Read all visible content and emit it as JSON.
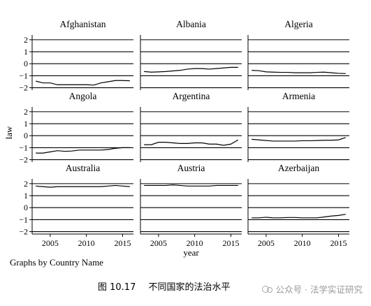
{
  "chart_data": {
    "type": "line",
    "layout": "small-multiples",
    "xlabel": "year",
    "ylabel": "law",
    "xlim": [
      2002.5,
      2016.5
    ],
    "ylim": [
      -2.2,
      2.4
    ],
    "xticks": [
      2005,
      2010,
      2015
    ],
    "yticks": [
      2,
      1,
      0,
      -1,
      -2
    ],
    "grid": "horizontal",
    "x": [
      2003,
      2004,
      2005,
      2006,
      2007,
      2008,
      2009,
      2010,
      2011,
      2012,
      2013,
      2014,
      2015,
      2016
    ],
    "panels": [
      {
        "name": "Afghanistan",
        "values": [
          -1.45,
          -1.6,
          -1.6,
          -1.75,
          -1.75,
          -1.75,
          -1.75,
          -1.75,
          -1.78,
          -1.6,
          -1.5,
          -1.4,
          -1.4,
          -1.42
        ]
      },
      {
        "name": "Albania",
        "values": [
          -0.65,
          -0.7,
          -0.68,
          -0.65,
          -0.6,
          -0.55,
          -0.45,
          -0.4,
          -0.4,
          -0.45,
          -0.4,
          -0.35,
          -0.3,
          -0.3
        ]
      },
      {
        "name": "Algeria",
        "values": [
          -0.55,
          -0.58,
          -0.68,
          -0.7,
          -0.72,
          -0.72,
          -0.75,
          -0.75,
          -0.75,
          -0.72,
          -0.7,
          -0.75,
          -0.8,
          -0.82
        ]
      },
      {
        "name": "Angola",
        "values": [
          -1.45,
          -1.45,
          -1.35,
          -1.25,
          -1.3,
          -1.28,
          -1.2,
          -1.2,
          -1.2,
          -1.2,
          -1.15,
          -1.05,
          -1.0,
          -1.0
        ]
      },
      {
        "name": "Argentina",
        "values": [
          -0.75,
          -0.75,
          -0.55,
          -0.55,
          -0.6,
          -0.65,
          -0.65,
          -0.6,
          -0.6,
          -0.7,
          -0.7,
          -0.8,
          -0.7,
          -0.35
        ]
      },
      {
        "name": "Armenia",
        "values": [
          -0.3,
          -0.35,
          -0.4,
          -0.45,
          -0.45,
          -0.45,
          -0.45,
          -0.42,
          -0.42,
          -0.4,
          -0.38,
          -0.38,
          -0.35,
          -0.15
        ]
      },
      {
        "name": "Australia",
        "values": [
          1.8,
          1.75,
          1.7,
          1.75,
          1.75,
          1.75,
          1.75,
          1.75,
          1.75,
          1.75,
          1.8,
          1.85,
          1.8,
          1.75
        ]
      },
      {
        "name": "Austria",
        "values": [
          1.85,
          1.85,
          1.85,
          1.85,
          1.9,
          1.85,
          1.8,
          1.8,
          1.8,
          1.8,
          1.85,
          1.85,
          1.85,
          1.85
        ]
      },
      {
        "name": "Azerbaijan",
        "values": [
          -0.85,
          -0.85,
          -0.8,
          -0.85,
          -0.85,
          -0.82,
          -0.82,
          -0.85,
          -0.85,
          -0.85,
          -0.78,
          -0.7,
          -0.65,
          -0.55
        ]
      }
    ]
  },
  "note": "Graphs by Country Name",
  "caption": {
    "figure_number": "图 10.17",
    "text": "不同国家的法治水平"
  },
  "watermark": {
    "text": "公众号 · 法学实证研究"
  }
}
